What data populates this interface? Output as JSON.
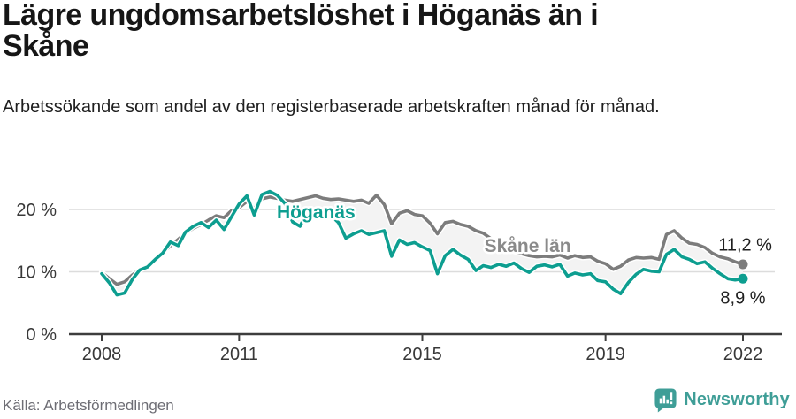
{
  "header": {
    "title_line1": "Lägre ungdomsarbetslöshet i Höganäs än i",
    "title_line2": "Skåne",
    "subtitle": "Arbetssökande som andel av den registerbaserade arbetskraften månad för månad."
  },
  "footer": {
    "source": "Källa: Arbetsförmedlingen",
    "brand": "Newsworthy",
    "brand_color": "#3f9e97",
    "brand_icon": "newsworthy-bar-chart-bubble-icon"
  },
  "chart_data": {
    "type": "line",
    "title": "Lägre ungdomsarbetslöshet i Höganäs än i Skåne",
    "xlabel": "",
    "ylabel": "",
    "xlim": [
      2008,
      2022.3
    ],
    "ylim": [
      0,
      26.5
    ],
    "grid": "horizontal-light",
    "legend_position": "inline-labels",
    "band_fill": "#f3f3f3",
    "grid_color": "#dcdcdc",
    "axis_color": "#3d3d3d",
    "tick_label_color": "#383838",
    "end_label_color": "#1f1f1f",
    "x_ticks": [
      {
        "label": "2008",
        "year": 2008
      },
      {
        "label": "2011",
        "year": 2011
      },
      {
        "label": "2015",
        "year": 2015
      },
      {
        "label": "2019",
        "year": 2019
      },
      {
        "label": "2022",
        "year": 2022
      }
    ],
    "y_ticks": [
      {
        "label": "0 %",
        "value": 0
      },
      {
        "label": "10 %",
        "value": 10
      },
      {
        "label": "20 %",
        "value": 20
      }
    ],
    "x": [
      2008,
      2008.17,
      2008.33,
      2008.5,
      2008.67,
      2008.83,
      2009,
      2009.17,
      2009.33,
      2009.5,
      2009.67,
      2009.83,
      2010,
      2010.17,
      2010.33,
      2010.5,
      2010.67,
      2010.83,
      2011,
      2011.17,
      2011.33,
      2011.5,
      2011.67,
      2011.83,
      2012,
      2012.17,
      2012.33,
      2012.5,
      2012.67,
      2012.83,
      2013,
      2013.17,
      2013.33,
      2013.5,
      2013.67,
      2013.83,
      2014,
      2014.17,
      2014.33,
      2014.5,
      2014.67,
      2014.83,
      2015,
      2015.17,
      2015.33,
      2015.5,
      2015.67,
      2015.83,
      2016,
      2016.17,
      2016.33,
      2016.5,
      2016.67,
      2016.83,
      2017,
      2017.17,
      2017.33,
      2017.5,
      2017.67,
      2017.83,
      2018,
      2018.17,
      2018.33,
      2018.5,
      2018.67,
      2018.83,
      2019,
      2019.17,
      2019.33,
      2019.5,
      2019.67,
      2019.83,
      2020,
      2020.17,
      2020.33,
      2020.5,
      2020.67,
      2020.83,
      2021,
      2021.17,
      2021.33,
      2021.5,
      2021.67,
      2021.83,
      2022
    ],
    "series": [
      {
        "id": "skane",
        "name": "Skåne län",
        "color": "#7c7c7c",
        "label_color": "#8a8a8a",
        "label_at": {
          "x": 2017.3,
          "y": 14.2
        },
        "end_label": "11,2 %",
        "end_value": 11.2,
        "end_label_at": {
          "x": 2022.05,
          "y": 14.4
        },
        "values": [
          9.9,
          8.9,
          8.0,
          8.4,
          9.5,
          10.4,
          11.0,
          12.0,
          13.0,
          14.2,
          15.2,
          16.2,
          17.0,
          17.6,
          18.3,
          19.0,
          18.7,
          19.8,
          20.3,
          21.3,
          20.1,
          21.7,
          22.0,
          21.8,
          21.5,
          21.3,
          21.6,
          21.9,
          22.2,
          21.8,
          21.6,
          21.7,
          21.5,
          21.3,
          21.5,
          21.0,
          22.3,
          20.8,
          17.7,
          19.4,
          19.8,
          19.2,
          19.0,
          17.8,
          16.1,
          17.9,
          18.1,
          17.6,
          17.3,
          16.6,
          16.2,
          15.3,
          14.5,
          13.8,
          13.3,
          12.9,
          12.6,
          12.4,
          12.5,
          12.4,
          12.7,
          12.2,
          12.6,
          12.3,
          12.4,
          11.7,
          11.3,
          10.4,
          10.9,
          11.9,
          12.3,
          12.2,
          12.3,
          12.0,
          16.0,
          16.6,
          15.4,
          14.6,
          14.4,
          13.9,
          13.0,
          12.4,
          12.1,
          11.6,
          11.2
        ]
      },
      {
        "id": "hoganas",
        "name": "Höganäs",
        "color": "#0d9e90",
        "label_color": "#0d9e90",
        "label_at": {
          "x": 2012.68,
          "y": 19.6
        },
        "end_label": "8,9 %",
        "end_value": 8.9,
        "end_label_at": {
          "x": 2022.0,
          "y": 5.9
        },
        "values": [
          9.7,
          8.2,
          6.3,
          6.6,
          8.8,
          10.3,
          10.8,
          12.0,
          13.0,
          14.8,
          14.2,
          16.4,
          17.3,
          17.9,
          17.1,
          18.3,
          16.8,
          18.8,
          20.9,
          22.2,
          19.1,
          22.4,
          22.9,
          22.3,
          21.0,
          18.0,
          17.3,
          19.8,
          19.2,
          18.8,
          19.1,
          17.9,
          15.4,
          16.1,
          16.6,
          16.0,
          16.3,
          16.6,
          12.5,
          15.1,
          14.4,
          14.7,
          14.0,
          13.4,
          9.7,
          12.6,
          13.6,
          12.7,
          12.0,
          10.2,
          11.0,
          10.7,
          11.2,
          10.9,
          11.4,
          10.5,
          9.9,
          10.9,
          11.1,
          10.8,
          11.2,
          9.3,
          9.8,
          9.5,
          9.7,
          8.6,
          8.4,
          7.2,
          6.5,
          8.3,
          9.6,
          10.4,
          10.1,
          10.0,
          12.8,
          13.6,
          12.4,
          12.0,
          11.3,
          11.6,
          10.6,
          9.7,
          8.9,
          8.7,
          8.9
        ]
      }
    ]
  }
}
